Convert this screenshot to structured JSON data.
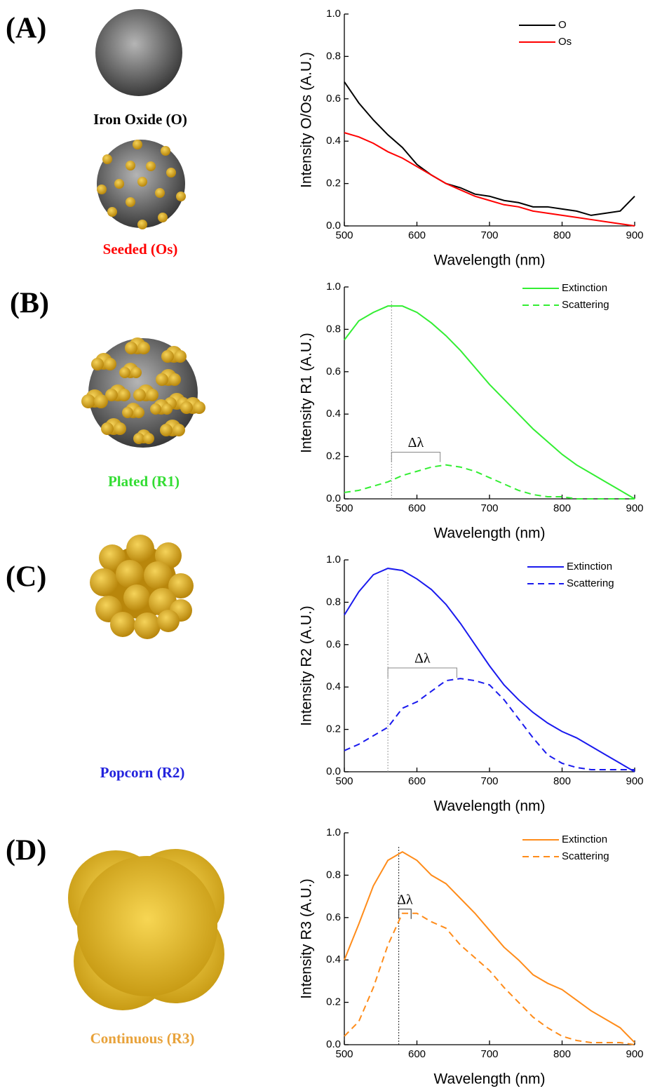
{
  "chart_data": [
    {
      "type": "line",
      "panel": "(A)",
      "particle_labels": [
        "Iron Oxide (O)",
        "Seeded (Os)"
      ],
      "x_label": "Wavelength (nm)",
      "y_label": "Intensity O/Os (A.U.)",
      "x": [
        500,
        520,
        540,
        560,
        580,
        600,
        620,
        640,
        660,
        680,
        700,
        720,
        740,
        760,
        780,
        800,
        820,
        840,
        860,
        880,
        900
      ],
      "series": [
        {
          "name": "O",
          "color": "#000000",
          "style": "solid",
          "values": [
            0.68,
            0.58,
            0.5,
            0.43,
            0.37,
            0.29,
            0.24,
            0.2,
            0.18,
            0.15,
            0.14,
            0.12,
            0.11,
            0.09,
            0.09,
            0.08,
            0.07,
            0.05,
            0.06,
            0.07,
            0.14
          ]
        },
        {
          "name": "Os",
          "color": "#ff0000",
          "style": "solid",
          "values": [
            0.44,
            0.42,
            0.39,
            0.35,
            0.32,
            0.28,
            0.24,
            0.2,
            0.17,
            0.14,
            0.12,
            0.1,
            0.09,
            0.07,
            0.06,
            0.05,
            0.04,
            0.03,
            0.02,
            0.01,
            0.0
          ]
        }
      ],
      "xlim": [
        500,
        900
      ],
      "xticks": [
        500,
        600,
        700,
        800,
        900
      ],
      "ylim": [
        0,
        1
      ],
      "yticks": [
        {
          "value": 0,
          "label": "0.0"
        },
        0.2,
        0.4,
        0.6,
        0.8,
        {
          "value": 1,
          "label": "1.0"
        }
      ]
    },
    {
      "type": "line",
      "panel": "(B)",
      "particle_labels": [
        "Plated (R1)"
      ],
      "x_label": "Wavelength (nm)",
      "y_label": "Intensity R1 (A.U.)",
      "x": [
        500,
        520,
        540,
        560,
        580,
        600,
        620,
        640,
        660,
        680,
        700,
        720,
        740,
        760,
        780,
        800,
        820,
        840,
        860,
        880,
        900
      ],
      "series": [
        {
          "name": "Extinction",
          "color": "#33ee33",
          "style": "solid",
          "values": [
            0.75,
            0.84,
            0.88,
            0.91,
            0.91,
            0.88,
            0.83,
            0.77,
            0.7,
            0.62,
            0.54,
            0.47,
            0.4,
            0.33,
            0.27,
            0.21,
            0.16,
            0.12,
            0.08,
            0.04,
            0.0
          ]
        },
        {
          "name": "Scattering",
          "color": "#33ee33",
          "style": "dashed",
          "values": [
            0.03,
            0.04,
            0.06,
            0.08,
            0.11,
            0.13,
            0.15,
            0.16,
            0.15,
            0.13,
            0.1,
            0.07,
            0.04,
            0.02,
            0.01,
            0.01,
            0.0,
            0.0,
            0.0,
            0.0,
            0.0
          ]
        }
      ],
      "peak_x": 565,
      "delta": {
        "label": "Δλ",
        "x": [
          565,
          632
        ],
        "y": 0.22
      },
      "xlim": [
        500,
        900
      ],
      "xticks": [
        500,
        600,
        700,
        800,
        900
      ],
      "ylim": [
        0,
        1
      ],
      "yticks": [
        {
          "value": 0,
          "label": "0.0"
        },
        0.2,
        0.4,
        0.6,
        0.8,
        {
          "value": 1,
          "label": "1.0"
        }
      ]
    },
    {
      "type": "line",
      "panel": "(C)",
      "particle_labels": [
        "Popcorn (R2)"
      ],
      "x_label": "Wavelength (nm)",
      "y_label": "Intensity R2 (A.U.)",
      "x": [
        500,
        520,
        540,
        560,
        580,
        600,
        620,
        640,
        660,
        680,
        700,
        720,
        740,
        760,
        780,
        800,
        820,
        840,
        860,
        880,
        900
      ],
      "series": [
        {
          "name": "Extinction",
          "color": "#1a1aee",
          "style": "solid",
          "values": [
            0.74,
            0.85,
            0.93,
            0.96,
            0.95,
            0.91,
            0.86,
            0.79,
            0.7,
            0.6,
            0.5,
            0.41,
            0.34,
            0.28,
            0.23,
            0.19,
            0.16,
            0.12,
            0.08,
            0.04,
            0.0
          ]
        },
        {
          "name": "Scattering",
          "color": "#1a1aee",
          "style": "dashed",
          "values": [
            0.1,
            0.13,
            0.17,
            0.21,
            0.3,
            0.33,
            0.38,
            0.43,
            0.44,
            0.43,
            0.41,
            0.34,
            0.25,
            0.16,
            0.08,
            0.04,
            0.02,
            0.01,
            0.01,
            0.01,
            0.01
          ]
        }
      ],
      "peak_x": 560,
      "delta": {
        "label": "Δλ",
        "x": [
          560,
          655
        ],
        "y": 0.49
      },
      "xlim": [
        500,
        900
      ],
      "xticks": [
        500,
        600,
        700,
        800,
        900
      ],
      "ylim": [
        0,
        1
      ],
      "yticks": [
        {
          "value": 0,
          "label": "0.0"
        },
        0.2,
        0.4,
        0.6,
        0.8,
        {
          "value": 1,
          "label": "1.0"
        }
      ]
    },
    {
      "type": "line",
      "panel": "(D)",
      "particle_labels": [
        "Continuous (R3)"
      ],
      "x_label": "Wavelength (nm)",
      "y_label": "Intensity R3 (A.U.)",
      "x": [
        500,
        520,
        540,
        560,
        580,
        600,
        620,
        640,
        660,
        680,
        700,
        720,
        740,
        760,
        780,
        800,
        820,
        840,
        860,
        880,
        900
      ],
      "series": [
        {
          "name": "Extinction",
          "color": "#ff8c1a",
          "style": "solid",
          "values": [
            0.4,
            0.57,
            0.75,
            0.87,
            0.91,
            0.87,
            0.8,
            0.76,
            0.69,
            0.62,
            0.54,
            0.46,
            0.4,
            0.33,
            0.29,
            0.26,
            0.21,
            0.16,
            0.12,
            0.08,
            0.01
          ]
        },
        {
          "name": "Scattering",
          "color": "#ff8c1a",
          "style": "dashed",
          "values": [
            0.04,
            0.11,
            0.27,
            0.47,
            0.62,
            0.62,
            0.58,
            0.55,
            0.47,
            0.41,
            0.35,
            0.27,
            0.2,
            0.13,
            0.08,
            0.04,
            0.02,
            0.01,
            0.01,
            0.01,
            0.0
          ]
        }
      ],
      "peak_x": 575,
      "delta": {
        "label": "Δλ",
        "x": [
          575,
          592
        ],
        "y": 0.64
      },
      "xlim": [
        500,
        900
      ],
      "xticks": [
        500,
        600,
        700,
        800,
        900
      ],
      "ylim": [
        0,
        1
      ],
      "yticks": [
        {
          "value": 0,
          "label": "0.0"
        },
        0.2,
        0.4,
        0.6,
        0.8,
        {
          "value": 1,
          "label": "1.0"
        }
      ]
    }
  ]
}
